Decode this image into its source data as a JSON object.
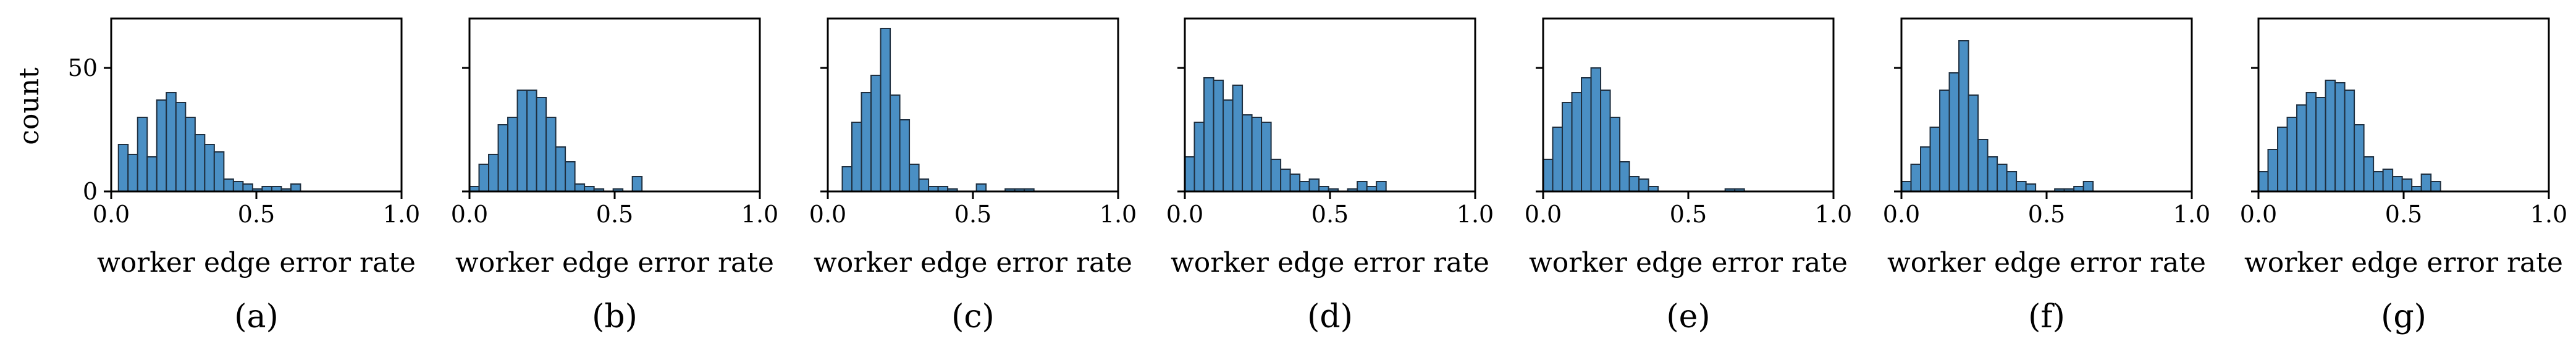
{
  "y_axis_label": "count",
  "x_ticks": [
    "0.0",
    "0.5",
    "1.0"
  ],
  "y_ticks": [
    "0",
    "50"
  ],
  "bar_color": "#4a8fc4",
  "chart_data": [
    {
      "type": "bar",
      "panel": "(a)",
      "xlabel": "worker edge error rate",
      "ylabel": "count",
      "xlim": [
        0,
        1
      ],
      "ylim": [
        0,
        70
      ],
      "bin_width": 0.033,
      "bin_start": 0.025,
      "values": [
        19,
        15,
        30,
        14,
        37,
        40,
        36,
        30,
        23,
        19,
        16,
        5,
        4,
        3,
        1,
        2,
        2,
        1,
        3
      ]
    },
    {
      "type": "bar",
      "panel": "(b)",
      "xlabel": "worker edge error rate",
      "ylabel": "count",
      "xlim": [
        0,
        1
      ],
      "ylim": [
        0,
        70
      ],
      "bin_width": 0.033,
      "bin_start": 0.0,
      "values": [
        2,
        11,
        15,
        27,
        30,
        41,
        41,
        38,
        30,
        18,
        12,
        3,
        2,
        1,
        0,
        1,
        0,
        6
      ]
    },
    {
      "type": "bar",
      "panel": "(c)",
      "xlabel": "worker edge error rate",
      "ylabel": "count",
      "xlim": [
        0,
        1
      ],
      "ylim": [
        0,
        70
      ],
      "bin_width": 0.033,
      "bin_start": 0.05,
      "values": [
        10,
        28,
        40,
        47,
        66,
        39,
        29,
        11,
        5,
        2,
        2,
        1,
        0,
        0,
        3,
        0,
        0,
        1,
        1,
        1
      ]
    },
    {
      "type": "bar",
      "panel": "(d)",
      "xlabel": "worker edge error rate",
      "ylabel": "count",
      "xlim": [
        0,
        1
      ],
      "ylim": [
        0,
        70
      ],
      "bin_width": 0.033,
      "bin_start": 0.0,
      "values": [
        14,
        28,
        46,
        45,
        37,
        43,
        31,
        30,
        28,
        13,
        9,
        7,
        4,
        5,
        2,
        1,
        0,
        1,
        4,
        2,
        4
      ]
    },
    {
      "type": "bar",
      "panel": "(e)",
      "xlabel": "worker edge error rate",
      "ylabel": "count",
      "xlim": [
        0,
        1
      ],
      "ylim": [
        0,
        70
      ],
      "bin_width": 0.033,
      "bin_start": 0.0,
      "values": [
        13,
        26,
        36,
        40,
        46,
        50,
        41,
        30,
        12,
        6,
        5,
        2,
        0,
        0,
        0,
        0,
        0,
        0,
        0,
        1,
        1
      ]
    },
    {
      "type": "bar",
      "panel": "(f)",
      "xlabel": "worker edge error rate",
      "ylabel": "count",
      "xlim": [
        0,
        1
      ],
      "ylim": [
        0,
        70
      ],
      "bin_width": 0.033,
      "bin_start": 0.0,
      "values": [
        4,
        11,
        18,
        26,
        41,
        48,
        61,
        39,
        21,
        14,
        11,
        8,
        4,
        3,
        0,
        0,
        1,
        1,
        2,
        4
      ]
    },
    {
      "type": "bar",
      "panel": "(g)",
      "xlabel": "worker edge error rate",
      "ylabel": "count",
      "xlim": [
        0,
        1
      ],
      "ylim": [
        0,
        70
      ],
      "bin_width": 0.033,
      "bin_start": 0.0,
      "values": [
        8,
        17,
        26,
        30,
        35,
        40,
        38,
        45,
        44,
        41,
        27,
        14,
        8,
        9,
        6,
        5,
        2,
        7,
        4
      ]
    }
  ]
}
